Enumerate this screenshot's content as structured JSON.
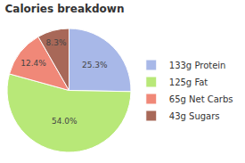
{
  "chart_data": {
    "type": "pie",
    "title": "Calories breakdown",
    "categories": [
      "133g Protein",
      "125g Fat",
      "65g Net Carbs",
      "43g Sugars"
    ],
    "values": [
      25.3,
      54.0,
      12.4,
      8.3
    ],
    "value_labels": [
      "25.3%",
      "54.0%",
      "12.4%",
      "8.3%"
    ],
    "colors": [
      "#a8b8e8",
      "#b8e878",
      "#f08878",
      "#a86858"
    ],
    "data_labels": true,
    "legend": "right"
  }
}
